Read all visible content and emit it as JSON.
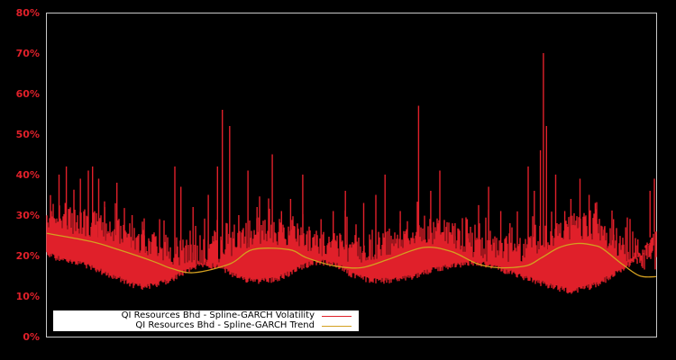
{
  "chart_data": {
    "type": "line",
    "title": "",
    "xlabel": "",
    "ylabel": "",
    "ylim": [
      0,
      80
    ],
    "y_ticks": [
      "0%",
      "10%",
      "20%",
      "30%",
      "40%",
      "50%",
      "60%",
      "70%",
      "80%"
    ],
    "grid": false,
    "legend_position": "lower-left",
    "background": "#000000",
    "frame_color": "#c8c8c8",
    "tick_color": "#e0202a",
    "series": [
      {
        "name": "QI Resources Bhd - Spline-GARCH Volatility",
        "color": "#e0202a",
        "style": "volatility-band",
        "x_frac": [
          0.0,
          0.02,
          0.04,
          0.06,
          0.08,
          0.1,
          0.12,
          0.14,
          0.16,
          0.18,
          0.2,
          0.22,
          0.24,
          0.26,
          0.28,
          0.3,
          0.32,
          0.34,
          0.36,
          0.38,
          0.4,
          0.42,
          0.44,
          0.46,
          0.48,
          0.5,
          0.52,
          0.54,
          0.56,
          0.58,
          0.6,
          0.62,
          0.64,
          0.66,
          0.68,
          0.7,
          0.72,
          0.74,
          0.76,
          0.78,
          0.8,
          0.82,
          0.84,
          0.86,
          0.88,
          0.9,
          0.92,
          0.94,
          0.96,
          0.98,
          1.0
        ],
        "floor": [
          21,
          20,
          19.5,
          18.5,
          17.5,
          16,
          15,
          13.5,
          13,
          13.5,
          14.5,
          16,
          18,
          18.5,
          18,
          16.5,
          15,
          14.5,
          14.5,
          15,
          16.5,
          18,
          19,
          19,
          18,
          16,
          15,
          14.5,
          14.5,
          15,
          15.5,
          16.5,
          17.5,
          18,
          18.5,
          19,
          18.5,
          17.5,
          16.5,
          15.5,
          14.5,
          13.5,
          12.5,
          12,
          12.5,
          13.5,
          15,
          17,
          19,
          22,
          27
        ],
        "spikes": [
          {
            "x": 0.02,
            "v": 40
          },
          {
            "x": 0.03,
            "v": 33
          },
          {
            "x": 0.032,
            "v": 42
          },
          {
            "x": 0.055,
            "v": 39
          },
          {
            "x": 0.068,
            "v": 41
          },
          {
            "x": 0.075,
            "v": 42
          },
          {
            "x": 0.085,
            "v": 39
          },
          {
            "x": 0.095,
            "v": 32
          },
          {
            "x": 0.115,
            "v": 38
          },
          {
            "x": 0.14,
            "v": 30
          },
          {
            "x": 0.16,
            "v": 25
          },
          {
            "x": 0.185,
            "v": 29
          },
          {
            "x": 0.21,
            "v": 42
          },
          {
            "x": 0.22,
            "v": 37
          },
          {
            "x": 0.24,
            "v": 32
          },
          {
            "x": 0.265,
            "v": 35
          },
          {
            "x": 0.28,
            "v": 42
          },
          {
            "x": 0.288,
            "v": 56
          },
          {
            "x": 0.3,
            "v": 52
          },
          {
            "x": 0.315,
            "v": 30
          },
          {
            "x": 0.33,
            "v": 41
          },
          {
            "x": 0.345,
            "v": 32
          },
          {
            "x": 0.37,
            "v": 45
          },
          {
            "x": 0.385,
            "v": 31
          },
          {
            "x": 0.4,
            "v": 34
          },
          {
            "x": 0.42,
            "v": 40
          },
          {
            "x": 0.45,
            "v": 29
          },
          {
            "x": 0.47,
            "v": 31
          },
          {
            "x": 0.49,
            "v": 36
          },
          {
            "x": 0.52,
            "v": 33
          },
          {
            "x": 0.54,
            "v": 35
          },
          {
            "x": 0.555,
            "v": 40
          },
          {
            "x": 0.58,
            "v": 31
          },
          {
            "x": 0.61,
            "v": 57
          },
          {
            "x": 0.63,
            "v": 36
          },
          {
            "x": 0.645,
            "v": 41
          },
          {
            "x": 0.67,
            "v": 28
          },
          {
            "x": 0.69,
            "v": 29
          },
          {
            "x": 0.71,
            "v": 26
          },
          {
            "x": 0.725,
            "v": 37
          },
          {
            "x": 0.745,
            "v": 31
          },
          {
            "x": 0.76,
            "v": 28
          },
          {
            "x": 0.79,
            "v": 42
          },
          {
            "x": 0.8,
            "v": 36
          },
          {
            "x": 0.81,
            "v": 46
          },
          {
            "x": 0.815,
            "v": 70
          },
          {
            "x": 0.82,
            "v": 52
          },
          {
            "x": 0.835,
            "v": 40
          },
          {
            "x": 0.85,
            "v": 31
          },
          {
            "x": 0.86,
            "v": 34
          },
          {
            "x": 0.875,
            "v": 39
          },
          {
            "x": 0.89,
            "v": 35
          },
          {
            "x": 0.9,
            "v": 33
          },
          {
            "x": 0.915,
            "v": 27
          },
          {
            "x": 0.93,
            "v": 29
          },
          {
            "x": 0.95,
            "v": 27
          },
          {
            "x": 0.97,
            "v": 24
          },
          {
            "x": 0.99,
            "v": 36
          },
          {
            "x": 0.997,
            "v": 39
          }
        ]
      },
      {
        "name": "QI Resources Bhd - Spline-GARCH Trend",
        "color": "#d4a020",
        "style": "line",
        "x_frac": [
          0.0,
          0.072,
          0.117,
          0.176,
          0.205,
          0.242,
          0.301,
          0.338,
          0.397,
          0.426,
          0.471,
          0.515,
          0.559,
          0.618,
          0.664,
          0.706,
          0.742,
          0.787,
          0.812,
          0.841,
          0.871,
          0.899,
          0.914,
          0.945,
          0.973,
          1.0
        ],
        "values": [
          25.5,
          23.5,
          21.5,
          18.5,
          16.8,
          15.8,
          18,
          21.5,
          21.5,
          19.5,
          17.5,
          17,
          19,
          22,
          21,
          18,
          17,
          17.5,
          19.5,
          22,
          23,
          22.5,
          21.5,
          17.8,
          15,
          14.8
        ]
      }
    ]
  },
  "legend": {
    "items": [
      {
        "label": "QI Resources Bhd - Spline-GARCH Volatility",
        "color": "#e0202a"
      },
      {
        "label": "QI Resources Bhd - Spline-GARCH Trend",
        "color": "#d4a020"
      }
    ]
  }
}
